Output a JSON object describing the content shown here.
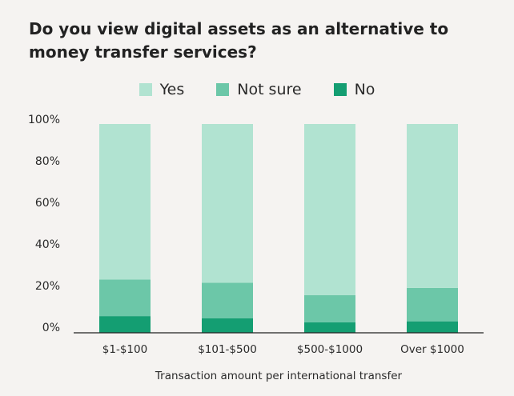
{
  "title": "Do you view digital assets as an alternative to money transfer services?",
  "legend": [
    {
      "label": "Yes",
      "color": "#b1e3d1"
    },
    {
      "label": "Not sure",
      "color": "#6cc7a8"
    },
    {
      "label": "No",
      "color": "#149e72"
    }
  ],
  "chart_data": {
    "type": "bar",
    "stacked": true,
    "title": "Do you view digital assets as an alternative to money transfer services?",
    "xlabel": "Transaction amount per international transfer",
    "ylabel": "",
    "ylim": [
      0,
      100
    ],
    "yticks": [
      "0%",
      "20%",
      "40%",
      "60%",
      "80%",
      "100%"
    ],
    "categories": [
      "$1-$100",
      "$101-$500",
      "$500-$1000",
      "Over $1000"
    ],
    "series": [
      {
        "name": "No",
        "values": [
          8,
          7,
          5,
          5.5
        ],
        "color": "#149e72"
      },
      {
        "name": "Not sure",
        "values": [
          17.5,
          17,
          13,
          16
        ],
        "color": "#6cc7a8"
      },
      {
        "name": "Yes",
        "values": [
          74.5,
          76,
          82,
          78.5
        ],
        "color": "#b1e3d1"
      }
    ],
    "legend_position": "top-center",
    "grid": false
  }
}
